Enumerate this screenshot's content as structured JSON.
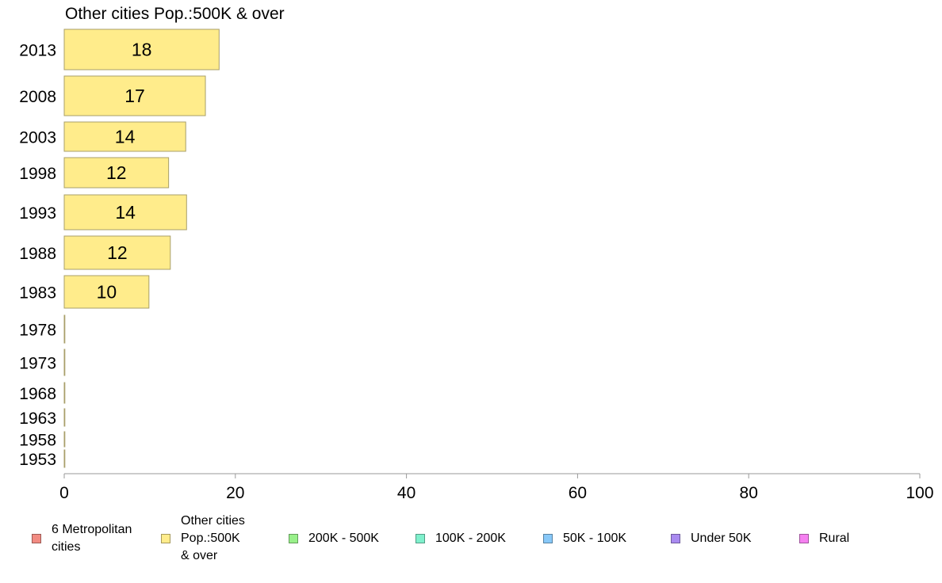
{
  "chart_data": {
    "type": "bar",
    "orientation": "horizontal",
    "title": "Other cities Pop.:500K & over",
    "xlabel": "",
    "ylabel": "",
    "categories": [
      "2013",
      "2008",
      "2003",
      "1998",
      "1993",
      "1988",
      "1983",
      "1978",
      "1973",
      "1968",
      "1963",
      "1958",
      "1953"
    ],
    "values": [
      18.1,
      16.5,
      14.2,
      12.2,
      14.3,
      12.4,
      9.9,
      0,
      0,
      0,
      0,
      0,
      0
    ],
    "data_labels": [
      "18",
      "17",
      "14",
      "12",
      "14",
      "12",
      "10",
      "",
      "",
      "",
      "",
      "",
      ""
    ],
    "xlim": [
      0,
      100
    ],
    "xticks": [
      0,
      20,
      40,
      60,
      80,
      100
    ],
    "grid": false,
    "bar_color": "#ffec8b",
    "legend_position": "bottom",
    "legend": [
      {
        "label": "6 Metropolitan\n cities",
        "color": "#f28b82"
      },
      {
        "label": "Other cities\nPop.:500K\n & over",
        "color": "#ffec8b"
      },
      {
        "label": "200K - 500K",
        "color": "#98f08a"
      },
      {
        "label": "100K - 200K",
        "color": "#7ff0cc"
      },
      {
        "label": "50K - 100K",
        "color": "#88c8f8"
      },
      {
        "label": "Under 50K",
        "color": "#a98af0"
      },
      {
        "label": "Rural",
        "color": "#f580f0"
      }
    ]
  }
}
